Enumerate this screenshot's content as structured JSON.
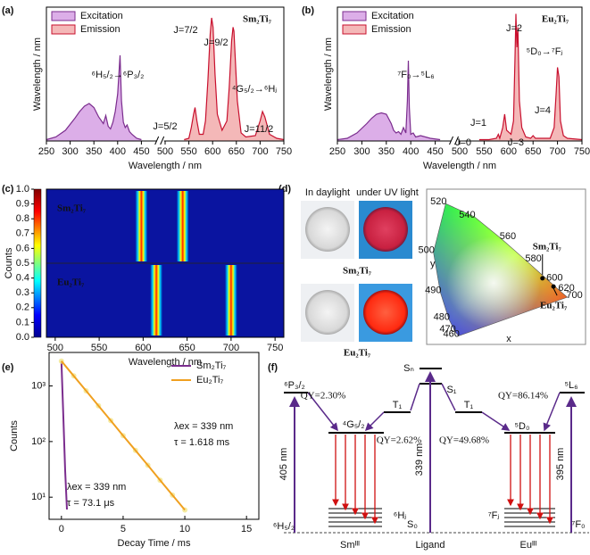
{
  "panel_labels": [
    "(a)",
    "(b)",
    "(c)",
    "(d)",
    "(e)",
    "(f)"
  ],
  "chart_data": [
    {
      "type": "spectrum",
      "title": "Sm₂Ti₇",
      "x_label": "Wavelength / nm",
      "y_label": "Wavelength / nm",
      "xlim": [
        250,
        750
      ],
      "xticks": [
        250,
        300,
        350,
        400,
        450,
        500,
        550,
        600,
        650,
        700,
        750
      ],
      "ylim": [
        0,
        1
      ],
      "series": [
        {
          "name": "Excitation",
          "color": "#7b2d8e",
          "fill": "#dcaee8",
          "x": [
            250,
            270,
            290,
            310,
            320,
            330,
            340,
            350,
            360,
            370,
            375,
            380,
            385,
            390,
            395,
            400,
            403,
            405,
            408,
            412,
            416,
            420,
            425,
            430,
            440,
            450
          ],
          "values": [
            0.01,
            0.03,
            0.08,
            0.17,
            0.22,
            0.26,
            0.28,
            0.25,
            0.18,
            0.13,
            0.19,
            0.11,
            0.09,
            0.14,
            0.22,
            0.35,
            0.52,
            0.64,
            0.3,
            0.14,
            0.1,
            0.12,
            0.07,
            0.05,
            0.02,
            0.01
          ]
        },
        {
          "name": "Emission",
          "color": "#c8102e",
          "fill": "#f4b8b8",
          "x": [
            540,
            550,
            555,
            560,
            563,
            567,
            572,
            580,
            585,
            590,
            595,
            598,
            601,
            605,
            610,
            620,
            630,
            635,
            640,
            643,
            645,
            648,
            652,
            660,
            670,
            690,
            700,
            705,
            710,
            720,
            735,
            750
          ],
          "values": [
            0.01,
            0.02,
            0.1,
            0.2,
            0.25,
            0.15,
            0.05,
            0.05,
            0.15,
            0.45,
            0.8,
            0.92,
            0.85,
            0.5,
            0.2,
            0.08,
            0.15,
            0.4,
            0.75,
            0.85,
            0.82,
            0.6,
            0.3,
            0.06,
            0.03,
            0.04,
            0.15,
            0.22,
            0.18,
            0.05,
            0.02,
            0.01
          ]
        }
      ],
      "annotations": [
        "⁶H₅/₂→⁶P₃/₂",
        "J=5/2",
        "J=7/2",
        "J=9/2",
        "⁴G₅/₂→⁶Hⱼ",
        "J=11/2"
      ]
    },
    {
      "type": "spectrum",
      "title": "Eu₂Ti₇",
      "x_label": "Wavelength / nm",
      "y_label": "Wavelength / nm",
      "xlim": [
        250,
        750
      ],
      "xticks": [
        250,
        300,
        350,
        400,
        450,
        500,
        550,
        600,
        650,
        700,
        750
      ],
      "ylim": [
        0,
        1
      ],
      "series": [
        {
          "name": "Excitation",
          "color": "#7b2d8e",
          "fill": "#dcaee8",
          "x": [
            250,
            270,
            290,
            310,
            320,
            330,
            340,
            350,
            360,
            365,
            370,
            375,
            380,
            385,
            390,
            393,
            395,
            397,
            400,
            405,
            410,
            420,
            440,
            460
          ],
          "values": [
            0.01,
            0.02,
            0.06,
            0.13,
            0.17,
            0.2,
            0.21,
            0.2,
            0.13,
            0.08,
            0.06,
            0.07,
            0.05,
            0.1,
            0.06,
            0.3,
            0.6,
            0.25,
            0.05,
            0.06,
            0.03,
            0.04,
            0.02,
            0.01
          ]
        },
        {
          "name": "Emission",
          "color": "#c8102e",
          "fill": "#f4b8b8",
          "x": [
            540,
            560,
            575,
            579,
            582,
            588,
            592,
            596,
            605,
            610,
            613,
            615,
            617,
            619,
            622,
            627,
            635,
            645,
            650,
            655,
            670,
            685,
            693,
            697,
            700,
            703,
            706,
            712,
            720,
            750
          ],
          "values": [
            0.01,
            0.01,
            0.02,
            0.05,
            0.02,
            0.1,
            0.2,
            0.08,
            0.05,
            0.15,
            0.6,
            0.95,
            0.7,
            0.85,
            0.3,
            0.1,
            0.03,
            0.02,
            0.04,
            0.02,
            0.02,
            0.02,
            0.1,
            0.35,
            0.55,
            0.48,
            0.15,
            0.04,
            0.02,
            0.01
          ]
        }
      ],
      "annotations": [
        "⁷F₀→⁵L₆",
        "J=0",
        "J=1",
        "J=2",
        "J=3",
        "J=4",
        "⁵D₀→⁷Fⱼ"
      ]
    },
    {
      "type": "heatmap",
      "x_label": "Wavelength / nm",
      "y_label": "Counts",
      "xlim": [
        490,
        760
      ],
      "xticks": [
        500,
        550,
        600,
        650,
        700,
        750
      ],
      "clim": [
        0,
        1
      ],
      "cticks": [
        {
          "value": 0,
          "label": "0.0"
        },
        {
          "value": 0.1,
          "label": "0.1"
        },
        {
          "value": 0.2,
          "label": "0.2"
        },
        {
          "value": 0.3,
          "label": "0.3"
        },
        {
          "value": 0.4,
          "label": "0.4"
        },
        {
          "value": 0.5,
          "label": "0.5"
        },
        {
          "value": 0.6,
          "label": "0.6"
        },
        {
          "value": 0.7,
          "label": "0.7"
        },
        {
          "value": 0.8,
          "label": "0.8"
        },
        {
          "value": 0.9,
          "label": "0.9"
        },
        {
          "value": 1,
          "label": "1.0"
        }
      ],
      "rows": [
        {
          "name": "Sm₂Ti₇",
          "bands": [
            598,
            645
          ]
        },
        {
          "name": "Eu₂Ti₇",
          "bands": [
            615,
            700
          ]
        }
      ]
    },
    {
      "type": "line",
      "x_label": "Decay Time / ms",
      "y_label": "Counts",
      "log_y": true,
      "xlim": [
        -1,
        16
      ],
      "xticks": [
        0,
        5,
        10,
        15
      ],
      "ylim": [
        4,
        4000
      ],
      "yticks": [
        {
          "value": 10,
          "label": "10¹"
        },
        {
          "value": 100,
          "label": "10²"
        },
        {
          "value": 1000,
          "label": "10³"
        }
      ],
      "series": [
        {
          "name": "Sm₂Ti₇",
          "color": "#7b2d8e",
          "x": [
            0,
            0.15,
            0.3,
            0.45
          ],
          "values": [
            2800,
            300,
            30,
            6
          ]
        },
        {
          "name": "Eu₂Ti₇",
          "color": "#f0a020",
          "x": [
            0,
            1,
            2,
            3,
            4,
            5,
            6,
            7,
            8,
            9,
            10
          ],
          "values": [
            2800,
            1512,
            816,
            441,
            238,
            128,
            69.4,
            37.5,
            20.2,
            10.9,
            5.9
          ]
        }
      ],
      "annotations": [
        "λex = 339 nm",
        "τ = 1.618 ms",
        "λex = 339 nm",
        "τ = 73.1 μs"
      ]
    }
  ],
  "photos": {
    "headers": [
      "In daylight",
      "under UV light"
    ],
    "samples": [
      "Sm₂Ti₇",
      "Eu₂Ti₇"
    ]
  },
  "cie": {
    "x_label": "x",
    "y_label": "y",
    "wavelengths": [
      "460",
      "470",
      "480",
      "490",
      "500",
      "520",
      "540",
      "560",
      "580",
      "600",
      "620",
      "700"
    ],
    "points": [
      {
        "name": "Sm₂Ti₇",
        "x": 0.6,
        "y": 0.38
      },
      {
        "name": "Eu₂Ti₇",
        "x": 0.66,
        "y": 0.33
      }
    ]
  },
  "energy_diagram": {
    "labels": [
      "⁶P₃/₂",
      "QY=2.30%",
      "⁴G₅/₂",
      "405 nm",
      "⁶Hⱼ",
      "⁶H₅/₂",
      "Smᴵᴵᴵ",
      "Sₙ",
      "S₁",
      "T₁",
      "T₁",
      "QY=2.62%",
      "QY=49.68%",
      "339 nm",
      "S₀",
      "Ligand",
      "⁵D₀",
      "QY=86.14%",
      "⁵L₆",
      "395 nm",
      "⁷Fⱼ",
      "⁷F₀",
      "Euᴵᴵᴵ"
    ]
  }
}
